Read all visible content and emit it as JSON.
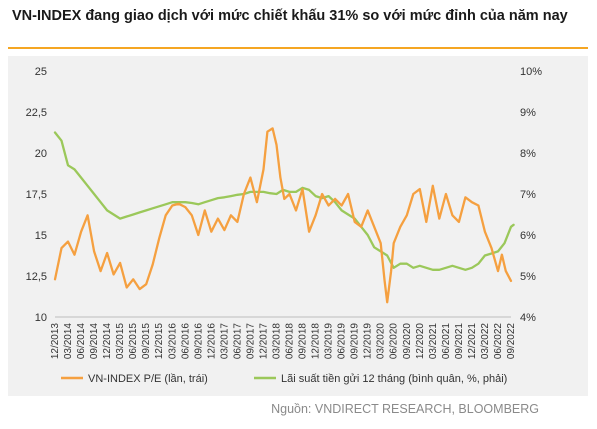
{
  "header": {
    "title": "VN-INDEX đang giao dịch với mức chiết khấu 31% so với mức đỉnh của năm nay"
  },
  "colors": {
    "pe_line": "#f5a040",
    "rate_line": "#9bc85a",
    "title_rule": "#f5a623",
    "panel_bg": "#f1f1f1"
  },
  "source_text": "Nguồn: VNDIRECT RESEARCH, BLOOMBERG",
  "chart_data": {
    "type": "line",
    "title": "VN-INDEX đang giao dịch với mức chiết khấu 31% so với mức đỉnh của năm nay",
    "x_tick_labels": [
      "12/2013",
      "03/2014",
      "06/2014",
      "09/2014",
      "12/2014",
      "03/2015",
      "06/2015",
      "09/2015",
      "12/2015",
      "03/2016",
      "06/2016",
      "09/2016",
      "12/2016",
      "03/2017",
      "06/2017",
      "09/2017",
      "12/2017",
      "03/2018",
      "06/2018",
      "09/2018",
      "12/2018",
      "03/2019",
      "06/2019",
      "09/2019",
      "12/2019",
      "03/2020",
      "06/2020",
      "09/2020",
      "12/2020",
      "03/2021",
      "06/2021",
      "09/2021",
      "12/2021",
      "03/2022",
      "06/2022",
      "09/2022"
    ],
    "y_left": {
      "ticks": [
        "10",
        "12,5",
        "15",
        "17,5",
        "20",
        "22,5",
        "25"
      ],
      "range": [
        10,
        25
      ]
    },
    "y_right": {
      "ticks": [
        "4%",
        "5%",
        "6%",
        "7%",
        "8%",
        "9%",
        "10%"
      ],
      "range": [
        4,
        10
      ]
    },
    "grid": false,
    "legend_position": "bottom",
    "series": [
      {
        "name": "VN-INDEX P/E (lần, trái)",
        "axis": "left",
        "color": "#f5a040",
        "x": [
          0,
          0.5,
          1,
          1.5,
          2,
          2.5,
          3,
          3.5,
          4,
          4.5,
          5,
          5.5,
          6,
          6.5,
          7,
          7.5,
          8,
          8.5,
          9,
          9.5,
          10,
          10.5,
          11,
          11.5,
          12,
          12.5,
          13,
          13.5,
          14,
          14.5,
          15,
          15.5,
          16,
          16.3,
          16.7,
          17,
          17.3,
          17.6,
          18,
          18.5,
          19,
          19.5,
          20,
          20.5,
          21,
          21.5,
          22,
          22.5,
          23,
          23.5,
          24,
          24.5,
          25,
          25.3,
          25.5,
          25.8,
          26,
          26.5,
          27,
          27.5,
          28,
          28.5,
          29,
          29.5,
          30,
          30.5,
          31,
          31.5,
          32,
          32.5,
          33,
          33.5,
          34,
          34.3,
          34.6,
          35
        ],
        "values": [
          12.3,
          14.2,
          14.6,
          13.8,
          15.2,
          16.2,
          14.0,
          12.8,
          13.9,
          12.6,
          13.3,
          11.8,
          12.3,
          11.7,
          12.0,
          13.2,
          14.8,
          16.2,
          16.8,
          16.9,
          16.7,
          16.2,
          15.0,
          16.5,
          15.2,
          16.0,
          15.3,
          16.2,
          15.8,
          17.5,
          18.5,
          17.0,
          19.0,
          21.3,
          21.5,
          20.5,
          18.5,
          17.2,
          17.5,
          16.5,
          17.8,
          15.2,
          16.2,
          17.5,
          16.8,
          17.2,
          16.8,
          17.5,
          15.8,
          15.5,
          16.5,
          15.5,
          14.5,
          12.2,
          10.9,
          12.8,
          14.5,
          15.5,
          16.2,
          17.5,
          17.8,
          15.8,
          18.0,
          16.0,
          17.5,
          16.2,
          15.8,
          17.3,
          17.0,
          16.8,
          15.2,
          14.2,
          12.8,
          13.8,
          12.8,
          12.2
        ]
      },
      {
        "name": "Lãi suất tiền gửi 12 tháng (bình quân, %, phải)",
        "axis": "right",
        "color": "#9bc85a",
        "x": [
          0,
          0.5,
          1,
          1.5,
          2,
          2.5,
          3,
          3.5,
          4,
          4.5,
          5,
          5.5,
          6,
          6.5,
          7,
          7.5,
          8,
          8.5,
          9,
          9.5,
          10,
          10.5,
          11,
          11.5,
          12,
          12.5,
          13,
          13.5,
          14,
          14.5,
          15,
          15.5,
          16,
          16.5,
          17,
          17.5,
          18,
          18.5,
          19,
          19.5,
          20,
          20.5,
          21,
          21.5,
          22,
          22.5,
          23,
          23.5,
          24,
          24.5,
          25,
          25.5,
          26,
          26.5,
          27,
          27.5,
          28,
          28.5,
          29,
          29.5,
          30,
          30.5,
          31,
          31.5,
          32,
          32.5,
          33,
          33.5,
          34,
          34.5,
          35,
          35.2
        ],
        "values": [
          8.5,
          8.3,
          7.7,
          7.6,
          7.4,
          7.2,
          7.0,
          6.8,
          6.6,
          6.5,
          6.4,
          6.45,
          6.5,
          6.55,
          6.6,
          6.65,
          6.7,
          6.75,
          6.8,
          6.8,
          6.8,
          6.78,
          6.75,
          6.8,
          6.85,
          6.9,
          6.92,
          6.95,
          6.98,
          7.0,
          7.05,
          7.05,
          7.05,
          7.02,
          7.0,
          7.1,
          7.05,
          7.05,
          7.15,
          7.1,
          6.95,
          6.9,
          6.95,
          6.8,
          6.6,
          6.5,
          6.4,
          6.2,
          6.0,
          5.7,
          5.6,
          5.5,
          5.2,
          5.3,
          5.3,
          5.2,
          5.25,
          5.2,
          5.15,
          5.15,
          5.2,
          5.25,
          5.2,
          5.15,
          5.2,
          5.3,
          5.5,
          5.55,
          5.6,
          5.8,
          6.2,
          6.25
        ]
      }
    ]
  }
}
